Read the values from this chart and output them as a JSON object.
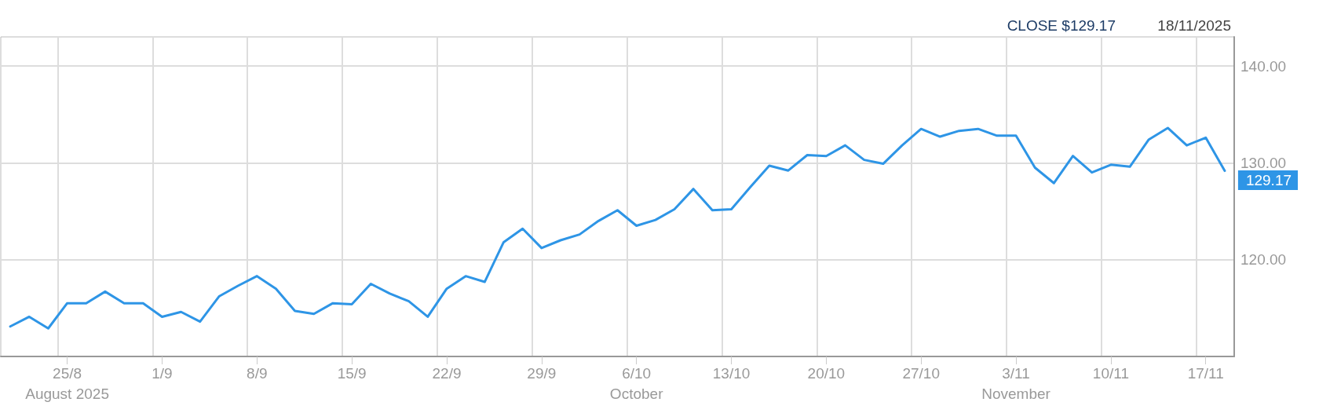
{
  "chart_data": {
    "type": "line",
    "title": "CLOSE $129.17",
    "subtitle": "18/11/2025",
    "categories": [
      null,
      null,
      null,
      "25/8\nAugust 2025",
      null,
      null,
      null,
      null,
      "1/9",
      null,
      null,
      null,
      null,
      "8/9",
      null,
      null,
      null,
      null,
      "15/9",
      null,
      null,
      null,
      null,
      "22/9",
      null,
      null,
      null,
      null,
      "29/9",
      null,
      null,
      null,
      null,
      "6/10\nOctober",
      null,
      null,
      null,
      null,
      "13/10",
      null,
      null,
      null,
      null,
      "20/10",
      null,
      null,
      null,
      null,
      "27/10",
      null,
      null,
      null,
      null,
      "3/11\nNovember",
      null,
      null,
      null,
      null,
      "10/11",
      null,
      null,
      null,
      null,
      "17/11",
      null
    ],
    "series": [
      {
        "color": "#2e95e6",
        "values": [
          113.1,
          114.1,
          112.9,
          115.5,
          115.5,
          116.7,
          115.5,
          115.5,
          114.1,
          114.6,
          113.6,
          116.2,
          117.3,
          118.3,
          117.0,
          114.7,
          114.4,
          115.5,
          115.4,
          117.5,
          116.5,
          115.7,
          114.1,
          117.0,
          118.3,
          117.7,
          121.8,
          123.2,
          121.2,
          122.0,
          122.6,
          124.0,
          125.1,
          123.5,
          124.1,
          125.2,
          127.3,
          125.1,
          125.2,
          127.5,
          129.7,
          129.2,
          130.8,
          130.7,
          131.8,
          130.3,
          129.9,
          131.8,
          133.5,
          132.7,
          133.3,
          133.5,
          132.8,
          132.8,
          129.5,
          127.9,
          130.7,
          129.0,
          129.8,
          129.6,
          132.4,
          133.6,
          131.8,
          132.6,
          129.17
        ],
        "value_labels": [
          null,
          null,
          null,
          null,
          null,
          null,
          null,
          null,
          null,
          null,
          null,
          null,
          null,
          null,
          null,
          null,
          null,
          null,
          null,
          null,
          null,
          null,
          null,
          null,
          null,
          null,
          null,
          null,
          null,
          null,
          null,
          null,
          null,
          null,
          null,
          null,
          null,
          null,
          null,
          null,
          null,
          null,
          null,
          null,
          null,
          null,
          null,
          null,
          null,
          null,
          null,
          null,
          null,
          null,
          null,
          null,
          null,
          null,
          null,
          null,
          null,
          null,
          null,
          null,
          "129.17"
        ]
      }
    ],
    "ylim": [
      110,
      143
    ],
    "yticks": [
      {
        "value": 120,
        "label": "120.00"
      },
      {
        "value": 130,
        "label": "130.00"
      },
      {
        "value": 140,
        "label": "140.00"
      }
    ],
    "grid": true,
    "marker": "none",
    "line_style": "solid"
  }
}
